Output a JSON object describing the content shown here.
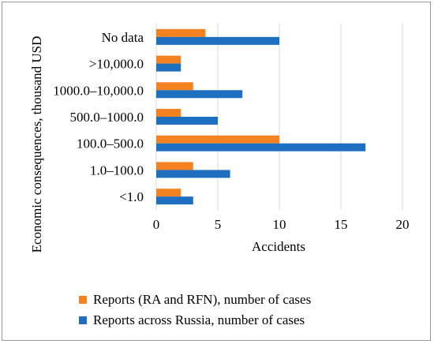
{
  "chart_data": {
    "type": "bar",
    "orientation": "horizontal",
    "categories": [
      "<1.0",
      "1.0–100.0",
      "100.0–500.0",
      "500.0–1000.0",
      "1000.0–10,000.0",
      ">10,000.0",
      "No data"
    ],
    "series": [
      {
        "name": "Reports (RA and RFN), number of cases",
        "color": "#f58220",
        "values": [
          2,
          3,
          10,
          2,
          3,
          2,
          4
        ]
      },
      {
        "name": "Reports across Russia, number of cases",
        "color": "#1f6fc0",
        "values": [
          3,
          6,
          17,
          5,
          7,
          2,
          10
        ]
      }
    ],
    "xlabel": "Accidents",
    "ylabel": "Economic consequences, thousand USD",
    "xlim": [
      0,
      20
    ],
    "xticks": [
      0,
      5,
      10,
      15,
      20
    ],
    "grid": true,
    "legend": "bottom"
  }
}
